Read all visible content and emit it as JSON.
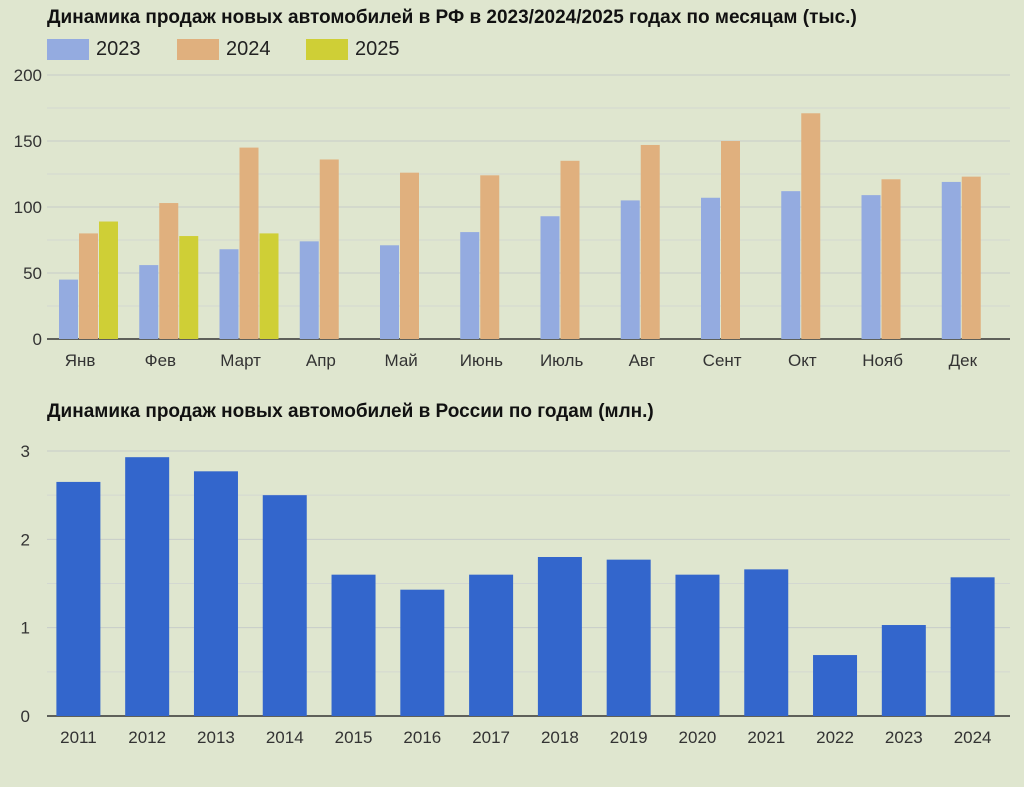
{
  "chart_data": [
    {
      "type": "bar",
      "title": "Динамика продаж новых автомобилей в РФ в 2023/2024/2025 годах по месяцам (тыс.)",
      "categories": [
        "Янв",
        "Фев",
        "Март",
        "Апр",
        "Май",
        "Июнь",
        "Июль",
        "Авг",
        "Сент",
        "Окт",
        "Нояб",
        "Дек"
      ],
      "series": [
        {
          "name": "2023",
          "color": "#94abe0",
          "values": [
            45,
            56,
            68,
            74,
            71,
            81,
            93,
            105,
            107,
            112,
            109,
            119
          ]
        },
        {
          "name": "2024",
          "color": "#e0b07e",
          "values": [
            80,
            103,
            145,
            136,
            126,
            124,
            135,
            147,
            150,
            171,
            121,
            123
          ]
        },
        {
          "name": "2025",
          "color": "#cfcf36",
          "values": [
            89,
            78,
            80,
            null,
            null,
            null,
            null,
            null,
            null,
            null,
            null,
            null
          ]
        }
      ],
      "yticks": [
        "0",
        "50",
        "100",
        "150",
        "200"
      ],
      "ylim": [
        0,
        200
      ],
      "grid": true,
      "legend": "top-left"
    },
    {
      "type": "bar",
      "title": "Динамика продаж новых автомобилей в России по годам (млн.)",
      "categories": [
        "2011",
        "2012",
        "2013",
        "2014",
        "2015",
        "2016",
        "2017",
        "2018",
        "2019",
        "2020",
        "2021",
        "2022",
        "2023",
        "2024"
      ],
      "values": [
        2.65,
        2.93,
        2.77,
        2.5,
        1.6,
        1.43,
        1.6,
        1.8,
        1.77,
        1.6,
        1.66,
        0.69,
        1.03,
        1.57
      ],
      "color": "#3366cc",
      "yticks": [
        "0",
        "1",
        "2",
        "3"
      ],
      "ylim": [
        0,
        3
      ],
      "grid": true,
      "legend": "none"
    }
  ]
}
